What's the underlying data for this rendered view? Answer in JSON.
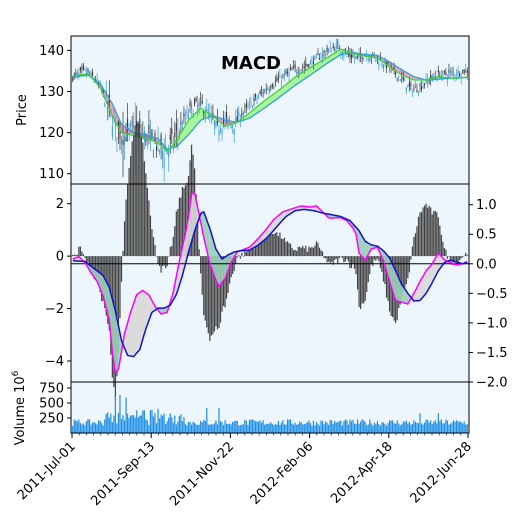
{
  "colors": {
    "panel_bg": "#eef6fd",
    "candle_up": "#3a9bdc",
    "candle_down": "#303030",
    "ma_fast": "#3cd13c",
    "ma_slow": "#2f9fd8",
    "ma_fill_up": "#9df58a",
    "ma_fill_down": "#e995b4",
    "macd_line": "#ff00ff",
    "signal_line": "#1010d0",
    "macd_fill_up": "#d8d8d8",
    "macd_fill_down": "#9acfb6",
    "hist_bar": "#303030",
    "volume_bar": "#1e90e6",
    "zero_line": "#000000"
  },
  "chart_data": {
    "type": "candlestick",
    "title": "MACD",
    "x_tick_labels": [
      "2011-Jul-01",
      "2011-Sep-13",
      "2011-Nov-22",
      "2012-Feb-06",
      "2012-Apr-18",
      "2012-Jun-28"
    ],
    "price_panel": {
      "ylabel": "Price",
      "ylim": [
        107.5,
        143.5
      ],
      "yticks": [
        110,
        120,
        130,
        140
      ],
      "close_anchors": [
        [
          0,
          133.5
        ],
        [
          8,
          135
        ],
        [
          15,
          133
        ],
        [
          22,
          128
        ],
        [
          28,
          121
        ],
        [
          33,
          119
        ],
        [
          40,
          121
        ],
        [
          48,
          119
        ],
        [
          55,
          117
        ],
        [
          60,
          115
        ],
        [
          66,
          118
        ],
        [
          72,
          122
        ],
        [
          78,
          126
        ],
        [
          84,
          127
        ],
        [
          90,
          124
        ],
        [
          95,
          121
        ],
        [
          100,
          123
        ],
        [
          106,
          122
        ],
        [
          112,
          125
        ],
        [
          120,
          128
        ],
        [
          128,
          131
        ],
        [
          136,
          133
        ],
        [
          144,
          135
        ],
        [
          152,
          136
        ],
        [
          160,
          138
        ],
        [
          168,
          140
        ],
        [
          174,
          141
        ],
        [
          180,
          139
        ],
        [
          186,
          138
        ],
        [
          192,
          139
        ],
        [
          198,
          138.5
        ],
        [
          204,
          137
        ],
        [
          210,
          135
        ],
        [
          216,
          133
        ],
        [
          222,
          130.5
        ],
        [
          228,
          131
        ],
        [
          234,
          133
        ],
        [
          240,
          134
        ],
        [
          250,
          134.5
        ],
        [
          259,
          135
        ]
      ],
      "ma_fast_anchors": [
        [
          0,
          133.8
        ],
        [
          10,
          134.3
        ],
        [
          18,
          131
        ],
        [
          26,
          124
        ],
        [
          32,
          120
        ],
        [
          40,
          119.3
        ],
        [
          48,
          118.7
        ],
        [
          56,
          117.5
        ],
        [
          62,
          115.5
        ],
        [
          68,
          118
        ],
        [
          76,
          123
        ],
        [
          84,
          126
        ],
        [
          92,
          124
        ],
        [
          100,
          121.5
        ],
        [
          108,
          122.5
        ],
        [
          116,
          124.8
        ],
        [
          126,
          127.8
        ],
        [
          136,
          130.5
        ],
        [
          146,
          133.5
        ],
        [
          156,
          135.8
        ],
        [
          166,
          138
        ],
        [
          176,
          140.3
        ],
        [
          184,
          139.2
        ],
        [
          192,
          138.6
        ],
        [
          200,
          138.2
        ],
        [
          208,
          136
        ],
        [
          216,
          134
        ],
        [
          224,
          132.8
        ],
        [
          232,
          132.8
        ],
        [
          240,
          133.6
        ],
        [
          250,
          133.2
        ],
        [
          259,
          133.5
        ]
      ],
      "ma_slow_anchors": [
        [
          0,
          133.5
        ],
        [
          10,
          134
        ],
        [
          18,
          132
        ],
        [
          26,
          127
        ],
        [
          32,
          122
        ],
        [
          40,
          120
        ],
        [
          48,
          119.5
        ],
        [
          56,
          118.5
        ],
        [
          62,
          116
        ],
        [
          68,
          116.5
        ],
        [
          76,
          119.5
        ],
        [
          84,
          123
        ],
        [
          92,
          124.2
        ],
        [
          100,
          123
        ],
        [
          108,
          122.5
        ],
        [
          116,
          123.5
        ],
        [
          126,
          126
        ],
        [
          136,
          128.7
        ],
        [
          146,
          131.5
        ],
        [
          156,
          134
        ],
        [
          166,
          136.6
        ],
        [
          176,
          139
        ],
        [
          184,
          139.5
        ],
        [
          192,
          139
        ],
        [
          200,
          138.8
        ],
        [
          208,
          137.2
        ],
        [
          216,
          135.3
        ],
        [
          224,
          133.6
        ],
        [
          232,
          132.8
        ],
        [
          240,
          133
        ],
        [
          250,
          133.3
        ],
        [
          259,
          133.4
        ]
      ]
    },
    "macd_panel": {
      "left_ylim": [
        -4.8,
        2.75
      ],
      "left_yticks": [
        -4,
        -2,
        0,
        2
      ],
      "right_ylim": [
        -2.0,
        1.35
      ],
      "right_yticks": [
        -2.0,
        -1.5,
        -1.0,
        -0.5,
        0.0,
        0.5,
        1.0
      ],
      "macd_anchors": [
        [
          0,
          0.08
        ],
        [
          4,
          0.12
        ],
        [
          8,
          0.02
        ],
        [
          12,
          -0.15
        ],
        [
          16,
          -0.3
        ],
        [
          20,
          -0.55
        ],
        [
          24,
          -0.95
        ],
        [
          26,
          -1.5
        ],
        [
          28,
          -1.85
        ],
        [
          30,
          -1.78
        ],
        [
          32,
          -1.5
        ],
        [
          34,
          -1.18
        ],
        [
          38,
          -0.82
        ],
        [
          42,
          -0.52
        ],
        [
          46,
          -0.45
        ],
        [
          50,
          -0.53
        ],
        [
          54,
          -0.72
        ],
        [
          58,
          -0.85
        ],
        [
          62,
          -0.82
        ],
        [
          66,
          -0.48
        ],
        [
          70,
          0.05
        ],
        [
          74,
          0.52
        ],
        [
          76,
          0.8
        ],
        [
          78,
          1.18
        ],
        [
          80,
          1.2
        ],
        [
          82,
          0.95
        ],
        [
          86,
          0.45
        ],
        [
          90,
          0.0
        ],
        [
          94,
          -0.28
        ],
        [
          96,
          -0.38
        ],
        [
          100,
          -0.25
        ],
        [
          104,
          0.02
        ],
        [
          108,
          0.2
        ],
        [
          112,
          0.24
        ],
        [
          116,
          0.28
        ],
        [
          120,
          0.38
        ],
        [
          126,
          0.55
        ],
        [
          132,
          0.75
        ],
        [
          138,
          0.88
        ],
        [
          144,
          0.93
        ],
        [
          150,
          0.98
        ],
        [
          156,
          0.96
        ],
        [
          160,
          0.98
        ],
        [
          164,
          0.88
        ],
        [
          168,
          0.78
        ],
        [
          170,
          0.77
        ],
        [
          172,
          0.78
        ],
        [
          176,
          0.78
        ],
        [
          180,
          0.73
        ],
        [
          184,
          0.6
        ],
        [
          186,
          0.5
        ],
        [
          188,
          0.18
        ],
        [
          192,
          0.06
        ],
        [
          196,
          0.25
        ],
        [
          200,
          0.28
        ],
        [
          204,
          0.05
        ],
        [
          208,
          -0.3
        ],
        [
          212,
          -0.62
        ],
        [
          216,
          -0.65
        ],
        [
          220,
          -0.68
        ],
        [
          224,
          -0.5
        ],
        [
          228,
          -0.3
        ],
        [
          232,
          -0.12
        ],
        [
          236,
          0.0
        ],
        [
          240,
          0.18
        ],
        [
          244,
          0.07
        ],
        [
          248,
          0.02
        ],
        [
          252,
          -0.02
        ],
        [
          256,
          0.0
        ],
        [
          259,
          0.04
        ]
      ],
      "signal_anchors": [
        [
          0,
          0.05
        ],
        [
          8,
          0.04
        ],
        [
          14,
          -0.08
        ],
        [
          20,
          -0.2
        ],
        [
          24,
          -0.4
        ],
        [
          28,
          -0.8
        ],
        [
          32,
          -1.3
        ],
        [
          36,
          -1.55
        ],
        [
          40,
          -1.57
        ],
        [
          44,
          -1.45
        ],
        [
          48,
          -1.1
        ],
        [
          52,
          -0.82
        ],
        [
          56,
          -0.75
        ],
        [
          60,
          -0.75
        ],
        [
          64,
          -0.7
        ],
        [
          68,
          -0.52
        ],
        [
          72,
          -0.2
        ],
        [
          76,
          0.2
        ],
        [
          80,
          0.55
        ],
        [
          84,
          0.85
        ],
        [
          86,
          0.88
        ],
        [
          90,
          0.6
        ],
        [
          94,
          0.25
        ],
        [
          98,
          0.08
        ],
        [
          102,
          0.15
        ],
        [
          106,
          0.2
        ],
        [
          110,
          0.22
        ],
        [
          116,
          0.23
        ],
        [
          122,
          0.32
        ],
        [
          128,
          0.45
        ],
        [
          134,
          0.63
        ],
        [
          140,
          0.8
        ],
        [
          146,
          0.9
        ],
        [
          152,
          0.92
        ],
        [
          158,
          0.9
        ],
        [
          164,
          0.86
        ],
        [
          170,
          0.83
        ],
        [
          176,
          0.8
        ],
        [
          182,
          0.73
        ],
        [
          188,
          0.56
        ],
        [
          192,
          0.38
        ],
        [
          196,
          0.32
        ],
        [
          200,
          0.3
        ],
        [
          204,
          0.22
        ],
        [
          208,
          0.1
        ],
        [
          212,
          -0.12
        ],
        [
          216,
          -0.35
        ],
        [
          220,
          -0.5
        ],
        [
          224,
          -0.63
        ],
        [
          228,
          -0.62
        ],
        [
          232,
          -0.5
        ],
        [
          236,
          -0.32
        ],
        [
          240,
          -0.12
        ],
        [
          244,
          0.02
        ],
        [
          248,
          0.06
        ],
        [
          252,
          0.03
        ],
        [
          256,
          0.0
        ],
        [
          259,
          0.02
        ]
      ]
    },
    "volume_panel": {
      "ylabel": "Volume  10",
      "ylabel_exp": "6",
      "ylim": [
        0,
        850
      ],
      "yticks": [
        250,
        500,
        750
      ]
    }
  }
}
